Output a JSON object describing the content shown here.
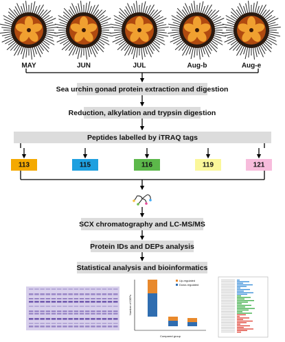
{
  "samples": [
    "MAY",
    "JUN",
    "JUL",
    "Aug-b",
    "Aug-e"
  ],
  "steps_before": [
    "Sea urchin gonad protein extraction and digestion",
    "Reduction, alkylation and trypsin digestion"
  ],
  "labeling": {
    "title": "Peptides labelled by iTRAQ tags",
    "tags": [
      {
        "label": "113",
        "color": "#f4a900"
      },
      {
        "label": "115",
        "color": "#1ea0e0"
      },
      {
        "label": "116",
        "color": "#5cb84a"
      },
      {
        "label": "119",
        "color": "#fbf79a"
      },
      {
        "label": "121",
        "color": "#f7bcdc"
      }
    ]
  },
  "steps_after": [
    "SCX chromatography and LC-MS/MS",
    "Protein IDs and DEPs analysis",
    "Statistical analysis and bioinformatics"
  ],
  "results": {
    "legend": [
      {
        "name": "Up-regulated",
        "color": "#e8892c"
      },
      {
        "name": "Down-regulated",
        "color": "#2f6db0"
      }
    ],
    "y_label": "Number of DEPs",
    "x_label": "Compared group"
  }
}
